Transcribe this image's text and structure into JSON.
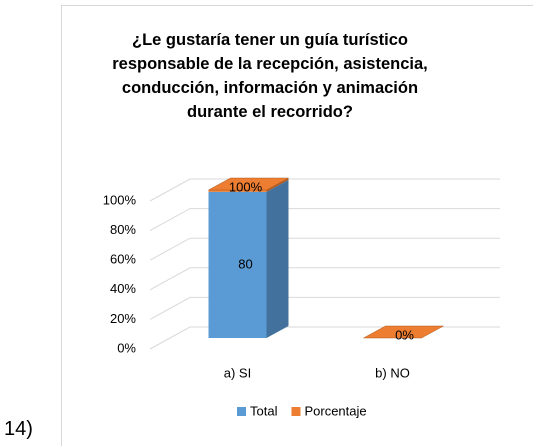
{
  "label": "14)",
  "chart_data": {
    "type": "bar3d_percent_stacked",
    "title": "¿Le gustaría tener un guía turístico responsable de la recepción, asistencia, conducción, información y animación durante el recorrido?",
    "categories": [
      "a) SI",
      "b) NO"
    ],
    "series": [
      {
        "name": "Total",
        "color": "#5b9bd5",
        "side": "#41719c",
        "values": [
          80,
          0
        ]
      },
      {
        "name": "Porcentaje",
        "color": "#ed7d31",
        "side": "#ae5a21",
        "values": [
          1,
          0
        ],
        "value_labels": [
          "100%",
          "0%"
        ]
      }
    ],
    "ylim": [
      0,
      100
    ],
    "yticks": [
      {
        "value": 0,
        "label": "0%"
      },
      {
        "value": 20,
        "label": "20%"
      },
      {
        "value": 40,
        "label": "40%"
      },
      {
        "value": 60,
        "label": "60%"
      },
      {
        "value": 80,
        "label": "80%"
      },
      {
        "value": 100,
        "label": "100%"
      }
    ],
    "grid": true,
    "legend": "bottom"
  }
}
